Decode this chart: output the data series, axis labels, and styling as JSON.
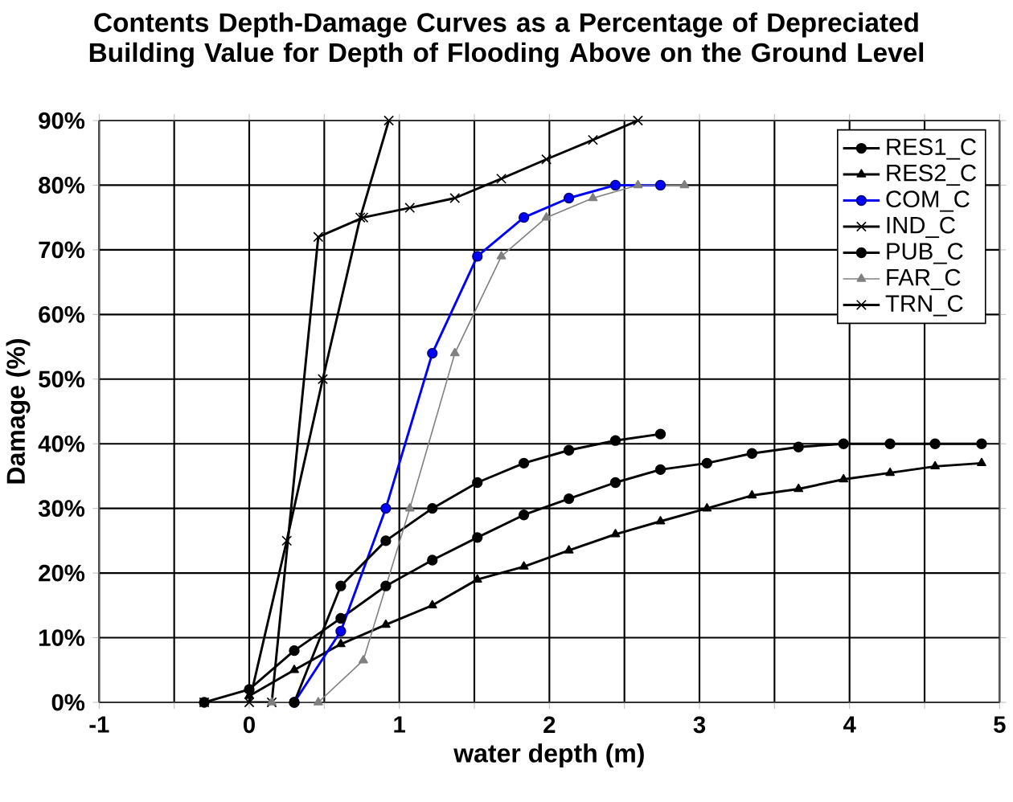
{
  "chart_data": {
    "type": "line",
    "title": "Contents Depth-Damage Curves as a Percentage of Depreciated Building Value for Depth of Flooding Above on the Ground Level",
    "xlabel": "water depth (m)",
    "ylabel": "Damage (%)",
    "xlim": [
      -1,
      5
    ],
    "ylim": [
      0,
      90
    ],
    "xticks": [
      -1,
      {
        "value": -0.5,
        "label": null
      },
      0,
      {
        "value": 0.5,
        "label": null
      },
      1,
      {
        "value": 1.5,
        "label": null
      },
      2,
      {
        "value": 2.5,
        "label": null
      },
      3,
      {
        "value": 3.5,
        "label": null
      },
      4,
      {
        "value": 4.5,
        "label": null
      },
      5
    ],
    "yticks": [
      {
        "value": 0,
        "label": "0%"
      },
      {
        "value": 10,
        "label": "10%"
      },
      {
        "value": 20,
        "label": "20%"
      },
      {
        "value": 30,
        "label": "30%"
      },
      {
        "value": 40,
        "label": "40%"
      },
      {
        "value": 50,
        "label": "50%"
      },
      {
        "value": 60,
        "label": "60%"
      },
      {
        "value": 70,
        "label": "70%"
      },
      {
        "value": 80,
        "label": "80%"
      },
      {
        "value": 90,
        "label": "90%"
      }
    ],
    "grid": true,
    "legend": "top right",
    "series": [
      {
        "name": "RES1_C",
        "color": "#000000",
        "marker": "circle",
        "x": [
          -0.3,
          0,
          0.3,
          0.61,
          0.91,
          1.22,
          1.52,
          1.83,
          2.13,
          2.44,
          2.74,
          3.05,
          3.35,
          3.66,
          3.96,
          4.27,
          4.57,
          4.88
        ],
        "values": [
          0,
          2,
          8,
          13,
          18,
          22,
          25.5,
          29,
          31.5,
          34,
          36,
          37,
          38.5,
          39.5,
          40,
          40,
          40,
          40
        ]
      },
      {
        "name": "RES2_C",
        "color": "#000000",
        "marker": "triangle",
        "x": [
          0,
          0.3,
          0.61,
          0.91,
          1.22,
          1.52,
          1.83,
          2.13,
          2.44,
          2.74,
          3.05,
          3.35,
          3.66,
          3.96,
          4.27,
          4.57,
          4.88
        ],
        "values": [
          1,
          5,
          9,
          12,
          15,
          19,
          21,
          23.5,
          26,
          28,
          30,
          32,
          33,
          34.5,
          35.5,
          36.5,
          37
        ]
      },
      {
        "name": "COM_C",
        "color": "#0000ff",
        "marker": "circle",
        "x": [
          0.3,
          0.61,
          0.91,
          1.22,
          1.52,
          1.83,
          2.13,
          2.44,
          2.74
        ],
        "values": [
          0,
          11,
          30,
          54,
          69,
          75,
          78,
          80,
          80
        ]
      },
      {
        "name": "IND_C",
        "color": "#000000",
        "marker": "cross",
        "x": [
          -0.3,
          0.15,
          0.46,
          0.76,
          1.07,
          1.37,
          1.68,
          1.98,
          2.29,
          2.59
        ],
        "values": [
          0,
          0,
          72,
          75,
          76.5,
          78,
          81,
          84,
          87,
          90
        ]
      },
      {
        "name": "PUB_C",
        "color": "#000000",
        "marker": "circle",
        "x": [
          0.3,
          0.61,
          0.91,
          1.22,
          1.52,
          1.83,
          2.13,
          2.44,
          2.74
        ],
        "values": [
          0,
          18,
          25,
          30,
          34,
          37,
          39,
          40.5,
          41.5
        ]
      },
      {
        "name": "FAR_C",
        "color": "#808080",
        "marker": "triangle",
        "x": [
          0.15,
          0.46,
          0.76,
          1.07,
          1.37,
          1.68,
          1.98,
          2.29,
          2.59,
          2.9
        ],
        "values": [
          0,
          0,
          6.5,
          30,
          54,
          69,
          75,
          78,
          80,
          80
        ]
      },
      {
        "name": "TRN_C",
        "color": "#000000",
        "marker": "cross",
        "x": [
          0,
          0.25,
          0.49,
          0.74,
          0.93
        ],
        "values": [
          0,
          25,
          50,
          75,
          90
        ]
      }
    ]
  }
}
